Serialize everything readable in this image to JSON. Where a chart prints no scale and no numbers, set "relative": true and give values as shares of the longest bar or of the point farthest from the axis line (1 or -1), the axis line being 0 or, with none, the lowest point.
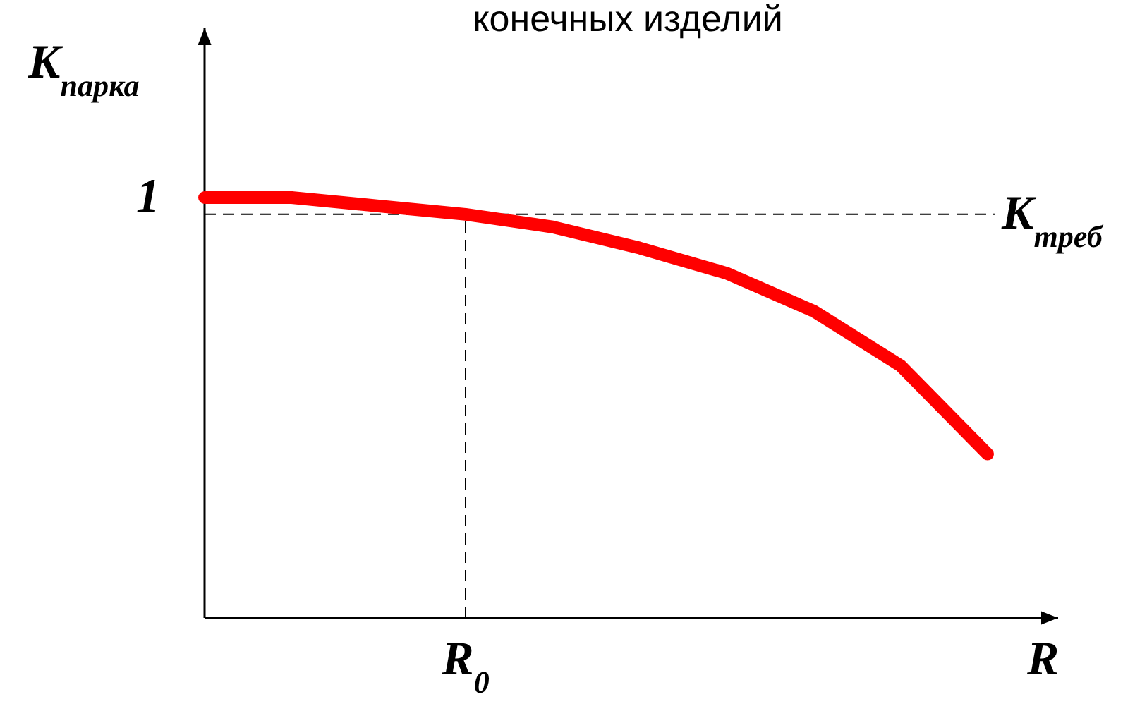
{
  "chart_data": {
    "type": "line",
    "title": "конечных изделий",
    "ylabel": "K$_{парка}$",
    "xlabel": "R",
    "relative": true,
    "line_style": "solid",
    "categories": [
      null,
      null,
      null,
      null,
      null,
      null,
      null,
      null,
      null,
      null
    ],
    "annotations": [
      "1",
      "K$_{треб}$",
      "R$_{0}$"
    ],
    "series": [
      {
        "color": "#ff0000",
        "values": [
          1,
          1,
          0.98,
          0.96,
          0.93,
          0.88,
          0.82,
          0.73,
          0.6,
          0.39
        ]
      }
    ]
  }
}
